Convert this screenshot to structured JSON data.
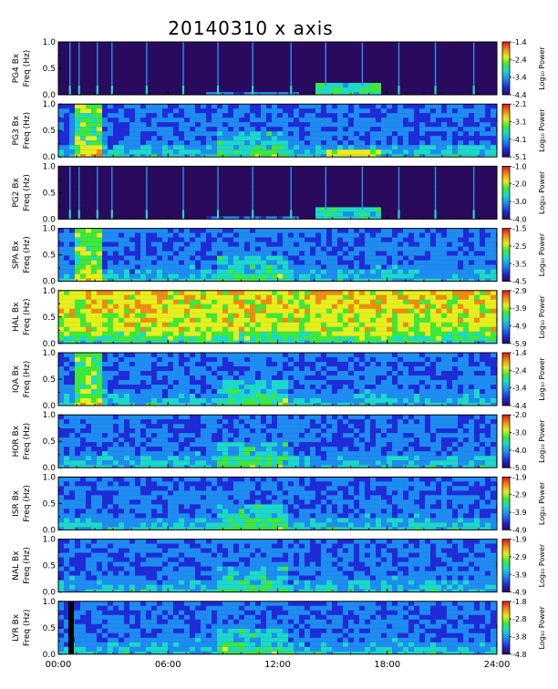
{
  "chart_data": {
    "type": "heatmap",
    "title": "20140310 x axis",
    "x_tick_labels": [
      "00:00",
      "06:00",
      "12:00",
      "18:00",
      "24:00"
    ],
    "x_range_hours": [
      0,
      24
    ],
    "y_range_hz": [
      0,
      1.0
    ],
    "y_tick_labels": [
      "0.0",
      "0.5",
      "1.0"
    ],
    "colorbar_unit": "Log₁₀ Power",
    "colormap": [
      "#2a0a5e",
      "#1f2bd6",
      "#1e8cf0",
      "#1cd8c8",
      "#3ee83a",
      "#e8ee1c",
      "#f08a12",
      "#e0101a"
    ],
    "panels": [
      {
        "station": "PG4",
        "ylabel": "PG4 Bx",
        "ylabel2": "Freq (Hz)",
        "colorbar_ticks": [
          "-1.4",
          "-2.4",
          "-3.4",
          "-4.4"
        ],
        "background": "dark",
        "has_pulses": true
      },
      {
        "station": "PG3",
        "ylabel": "PG3 Bx",
        "ylabel2": "Freq (Hz)",
        "colorbar_ticks": [
          "-2.1",
          "-3.1",
          "-4.1",
          "-5.1"
        ],
        "background": "blue",
        "has_pulses": false
      },
      {
        "station": "PG2",
        "ylabel": "PG2 Bx",
        "ylabel2": "Freq (Hz)",
        "colorbar_ticks": [
          "-1.0",
          "-2.0",
          "-3.0",
          "-4.0"
        ],
        "background": "dark",
        "has_pulses": true
      },
      {
        "station": "SPA",
        "ylabel": "SPA Bx",
        "ylabel2": "Freq (Hz)",
        "colorbar_ticks": [
          "-1.5",
          "-2.5",
          "-3.5",
          "-4.5"
        ],
        "background": "navy",
        "has_pulses": false
      },
      {
        "station": "HAL",
        "ylabel": "HAL Bx",
        "ylabel2": "Freq (Hz)",
        "colorbar_ticks": [
          "-2.9",
          "-3.9",
          "-4.9",
          "-5.9"
        ],
        "background": "green",
        "has_pulses": false
      },
      {
        "station": "IQA",
        "ylabel": "IQA Bx",
        "ylabel2": "Freq (Hz)",
        "colorbar_ticks": [
          "-1.4",
          "-2.4",
          "-3.4",
          "-4.4"
        ],
        "background": "blue",
        "has_pulses": false
      },
      {
        "station": "HOR",
        "ylabel": "HOR Bx",
        "ylabel2": "Freq (Hz)",
        "colorbar_ticks": [
          "-2.0",
          "-3.0",
          "-4.0",
          "-5.0"
        ],
        "background": "blue",
        "has_pulses": false
      },
      {
        "station": "ISR",
        "ylabel": "ISR Bx",
        "ylabel2": "Freq (Hz)",
        "colorbar_ticks": [
          "-1.9",
          "-2.9",
          "-3.9",
          "-4.9"
        ],
        "background": "blue",
        "has_pulses": false
      },
      {
        "station": "NAL",
        "ylabel": "NAL Bx",
        "ylabel2": "Freq (Hz)",
        "colorbar_ticks": [
          "-1.9",
          "-2.9",
          "-3.9",
          "-4.9"
        ],
        "background": "blue",
        "has_pulses": false
      },
      {
        "station": "LYR",
        "ylabel": "LYR Bx",
        "ylabel2": "Freq (Hz)",
        "colorbar_ticks": [
          "-1.8",
          "-2.8",
          "-3.8",
          "-4.8"
        ],
        "background": "blue",
        "has_pulses": false
      }
    ]
  }
}
